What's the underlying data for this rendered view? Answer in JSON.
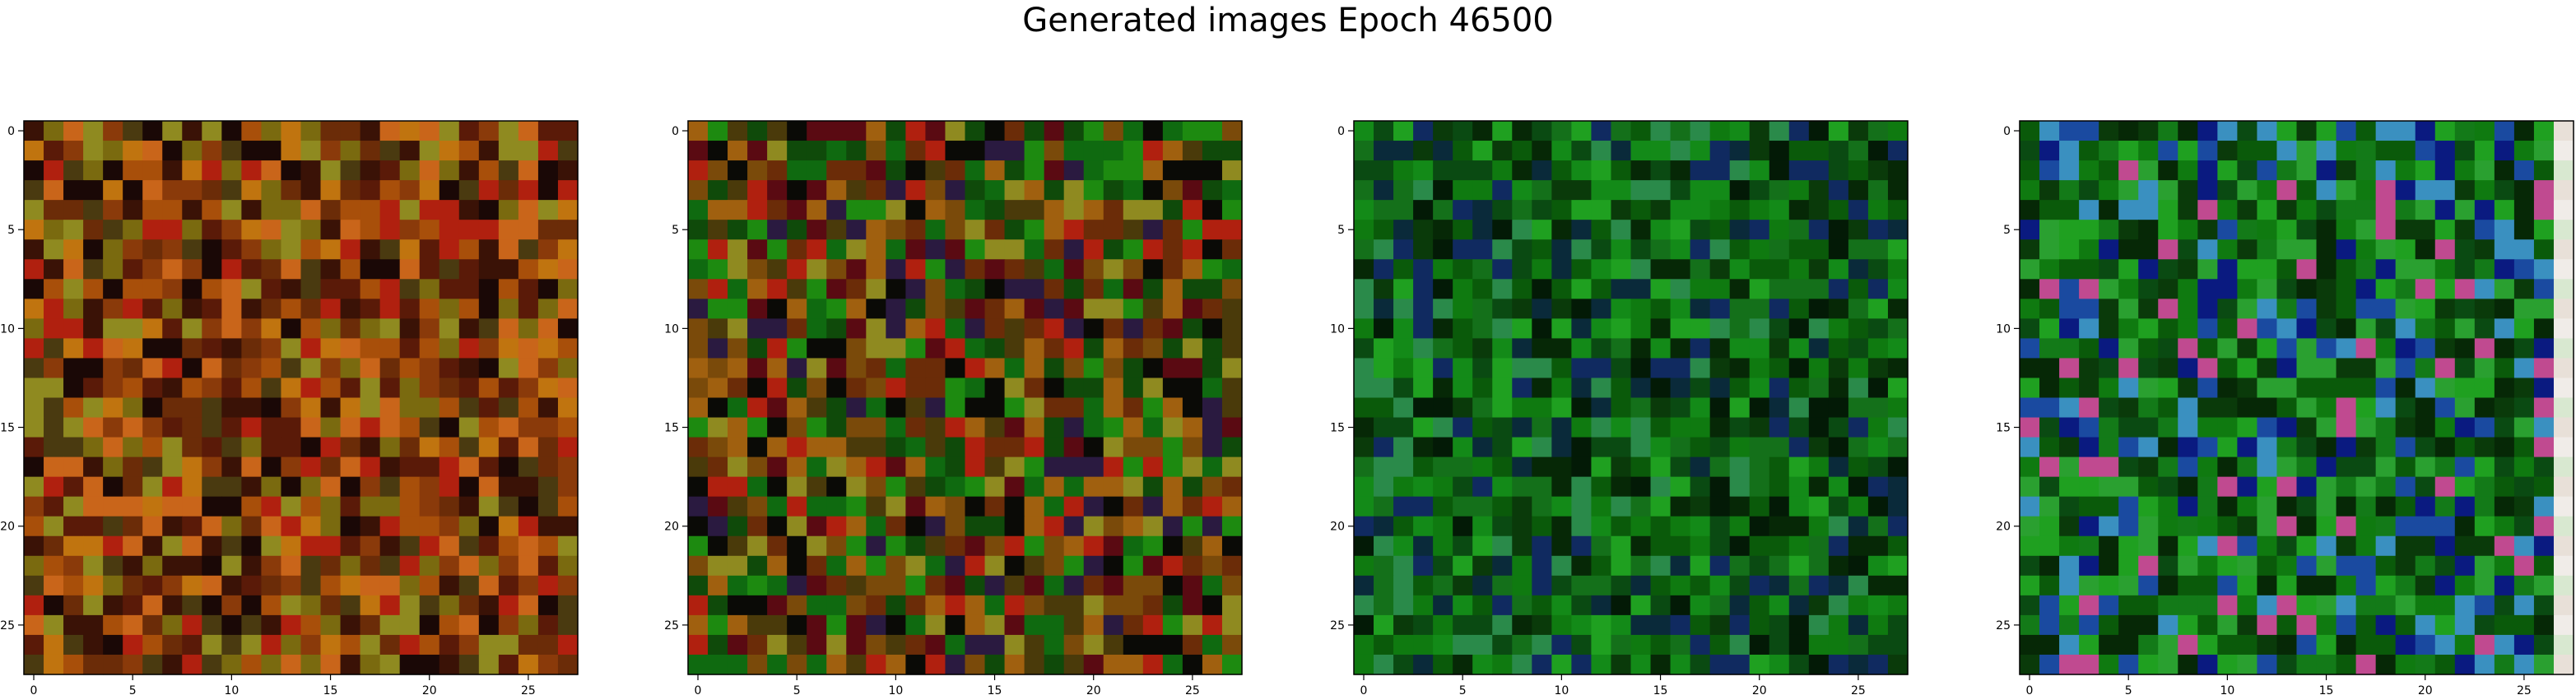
{
  "figure": {
    "title": "Generated images Epoch 46500"
  },
  "chart_data": [
    {
      "type": "heatmap",
      "panel": 1,
      "grid_size": 28,
      "xticks": [
        "0",
        "5",
        "10",
        "15",
        "20",
        "25"
      ],
      "yticks": [
        "0",
        "5",
        "10",
        "15",
        "20",
        "25"
      ],
      "xlim": [
        -0.5,
        27.5
      ],
      "ylim": [
        27.5,
        -0.5
      ],
      "palette": [
        "#6b2c08",
        "#8a3a0a",
        "#a84f0a",
        "#c0740f",
        "#7a6a0f",
        "#5a1a08",
        "#3a1206",
        "#b0200f",
        "#1a0806",
        "#8f8a20",
        "#4a3a10",
        "#c9651a"
      ],
      "seed": 1
    },
    {
      "type": "heatmap",
      "panel": 2,
      "grid_size": 28,
      "xticks": [
        "0",
        "5",
        "10",
        "15",
        "20",
        "25"
      ],
      "yticks": [
        "0",
        "5",
        "10",
        "15",
        "20",
        "25"
      ],
      "xlim": [
        -0.5,
        27.5
      ],
      "ylim": [
        27.5,
        -0.5
      ],
      "palette": [
        "#0f6a10",
        "#1d8a10",
        "#4a3a0a",
        "#7a4a0a",
        "#a0600f",
        "#0a0a06",
        "#5a0a12",
        "#2a1a40",
        "#0f4a0a",
        "#b0200f",
        "#6b2c08",
        "#8f8a20"
      ],
      "seed": 2
    },
    {
      "type": "heatmap",
      "panel": 3,
      "grid_size": 28,
      "xticks": [
        "0",
        "5",
        "10",
        "15",
        "20",
        "25"
      ],
      "yticks": [
        "0",
        "5",
        "10",
        "15",
        "20",
        "25"
      ],
      "xlim": [
        -0.5,
        27.5
      ],
      "ylim": [
        27.5,
        -0.5
      ],
      "palette": [
        "#0a5a0a",
        "#0f7a10",
        "#138a18",
        "#0a3a0a",
        "#1fa020",
        "#062806",
        "#0a2a3a",
        "#102a60",
        "#14701a",
        "#031a06",
        "#2a8a4a",
        "#0a4a12"
      ],
      "seed": 3
    },
    {
      "type": "heatmap",
      "panel": 4,
      "grid_size": 28,
      "xticks": [
        "0",
        "5",
        "10",
        "15",
        "20",
        "25"
      ],
      "yticks": [
        "0",
        "5",
        "10",
        "15",
        "20",
        "25"
      ],
      "xlim": [
        -0.5,
        27.5
      ],
      "ylim": [
        27.5,
        -0.5
      ],
      "palette": [
        "#0a5a0a",
        "#0f7a10",
        "#137a18",
        "#0a3a0a",
        "#1fa020",
        "#062806",
        "#0a1a80",
        "#1a4aa0",
        "#3a90c0",
        "#c04a90",
        "#2aa030",
        "#0a4a12"
      ],
      "seed": 4
    }
  ]
}
